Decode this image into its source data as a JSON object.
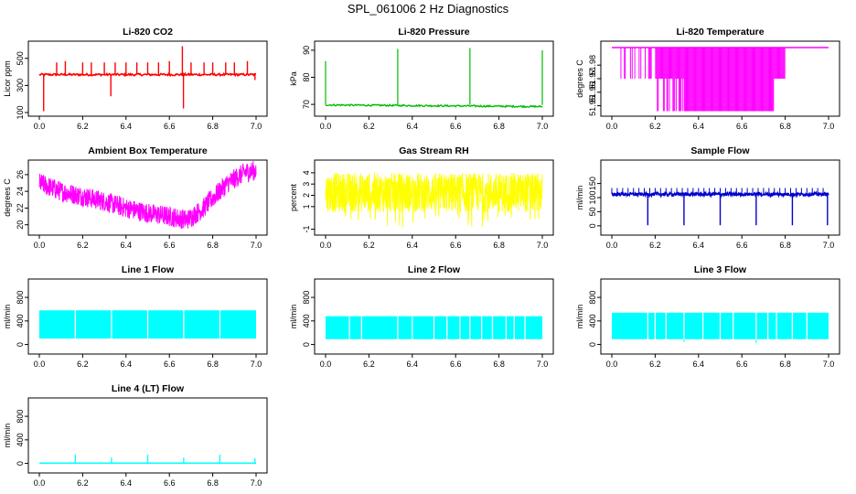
{
  "title": "SPL_061006  2 Hz Diagnostics",
  "chart_data": [
    {
      "type": "line",
      "title": "Li-820 CO2",
      "ylabel": "Licor ppm",
      "color": "#ff0000",
      "xlim": [
        0,
        7.0
      ],
      "ylim": [
        100,
        600
      ],
      "x_ticks": [
        "0.0",
        "6.2",
        "6.4",
        "6.6",
        "6.8",
        "7.0"
      ],
      "y_ticks": [
        100,
        300,
        500
      ],
      "series": [
        {
          "baseline": 380,
          "noise": 8,
          "spikes": [
            {
              "x": 0.02,
              "y": 110
            },
            {
              "x": 0.08,
              "y": 470
            },
            {
              "x": 0.12,
              "y": 480
            },
            {
              "x": 0.2,
              "y": 470
            },
            {
              "x": 0.24,
              "y": 470
            },
            {
              "x": 0.3,
              "y": 470
            },
            {
              "x": 0.33,
              "y": 220
            },
            {
              "x": 0.35,
              "y": 470
            },
            {
              "x": 0.4,
              "y": 470
            },
            {
              "x": 0.45,
              "y": 470
            },
            {
              "x": 0.5,
              "y": 470
            },
            {
              "x": 0.55,
              "y": 470
            },
            {
              "x": 0.6,
              "y": 480
            },
            {
              "x": 0.66,
              "y": 590
            },
            {
              "x": 0.665,
              "y": 130
            },
            {
              "x": 0.7,
              "y": 470
            },
            {
              "x": 0.76,
              "y": 470
            },
            {
              "x": 0.8,
              "y": 470
            },
            {
              "x": 0.86,
              "y": 470
            },
            {
              "x": 0.9,
              "y": 470
            },
            {
              "x": 0.96,
              "y": 480
            },
            {
              "x": 0.995,
              "y": 340
            }
          ]
        }
      ]
    },
    {
      "type": "line",
      "title": "Li-820 Pressure",
      "ylabel": "kPa",
      "color": "#00bb00",
      "ylim": [
        67,
        92
      ],
      "x_ticks": [
        "0.0",
        "6.2",
        "6.4",
        "6.6",
        "6.8",
        "7.0"
      ],
      "y_ticks": [
        70,
        80,
        90
      ],
      "series": [
        {
          "start": 69.8,
          "end": 69.2,
          "noise": 0.3,
          "spikes": [
            {
              "x": 0.0,
              "y": 86
            },
            {
              "x": 0.333,
              "y": 90.5
            },
            {
              "x": 0.666,
              "y": 90.8
            },
            {
              "x": 1.0,
              "y": 90
            }
          ]
        }
      ]
    },
    {
      "type": "line",
      "title": "Li-820 Temperature",
      "ylabel": "degrees C",
      "color": "#ff00ff",
      "ylim": [
        51.945,
        51.995
      ],
      "x_ticks": [
        "0.0",
        "6.2",
        "6.4",
        "6.6",
        "6.8",
        "7.0"
      ],
      "y_ticks": [
        "51.95",
        "51.96",
        "51.97",
        "51.98"
      ],
      "series": [
        {
          "level_high": 51.993,
          "level_mid": 51.97,
          "level_low": 51.946
        }
      ]
    },
    {
      "type": "line",
      "title": "Ambient Box Temperature",
      "ylabel": "degrees C",
      "color": "#ff00ff",
      "ylim": [
        19.2,
        27.3
      ],
      "x_ticks": [
        "0.0",
        "6.2",
        "6.4",
        "6.6",
        "6.8",
        "7.0"
      ],
      "y_ticks": [
        20,
        22,
        24,
        26
      ],
      "series": [
        {
          "envelope": [
            [
              0.0,
              25.0
            ],
            [
              0.1,
              24.0
            ],
            [
              0.2,
              23.4
            ],
            [
              0.3,
              22.8
            ],
            [
              0.4,
              22.0
            ],
            [
              0.5,
              21.4
            ],
            [
              0.6,
              21.0
            ],
            [
              0.68,
              20.6
            ],
            [
              0.75,
              21.8
            ],
            [
              0.8,
              23.2
            ],
            [
              0.87,
              25.0
            ],
            [
              0.95,
              26.3
            ],
            [
              1.0,
              26.5
            ]
          ],
          "noise": 1.2
        }
      ]
    },
    {
      "type": "line",
      "title": "Gas Stream RH",
      "ylabel": "percent",
      "color": "#ffff00",
      "ylim": [
        -1.2,
        4.8
      ],
      "x_ticks": [
        "0.0",
        "6.2",
        "6.4",
        "6.6",
        "6.8",
        "7.0"
      ],
      "y_ticks": [
        -1,
        1,
        2,
        3,
        4
      ],
      "series": [
        {
          "band_top": 4.0,
          "band_bottom": 0.5,
          "min": -0.9
        }
      ]
    },
    {
      "type": "line",
      "title": "Sample Flow",
      "ylabel": "ml/min",
      "color": "#0000cc",
      "ylim": [
        -20,
        220
      ],
      "x_ticks": [
        "0.0",
        "6.2",
        "6.4",
        "6.6",
        "6.8",
        "7.0"
      ],
      "y_ticks": [
        0,
        50,
        100,
        150
      ],
      "series": [
        {
          "baseline": 112,
          "noise": 6,
          "dips": [
            0.166,
            0.333,
            0.5,
            0.666,
            0.833,
            0.995
          ],
          "dip_value": 2
        }
      ]
    },
    {
      "type": "line",
      "title": "Line 1 Flow",
      "ylabel": "ml/min",
      "color": "#00ffff",
      "ylim": [
        -100,
        1050
      ],
      "x_ticks": [
        "0.0",
        "6.2",
        "6.4",
        "6.6",
        "6.8",
        "7.0"
      ],
      "y_ticks": [
        0,
        400,
        800
      ],
      "series": [
        {
          "band_top": 580,
          "band_bottom": 100,
          "gaps": [
            0.166,
            0.333,
            0.5,
            0.666,
            0.833
          ]
        }
      ]
    },
    {
      "type": "line",
      "title": "Line 2 Flow",
      "ylabel": "ml/min",
      "color": "#00ffff",
      "ylim": [
        -100,
        1050
      ],
      "x_ticks": [
        "0.0",
        "6.2",
        "6.4",
        "6.6",
        "6.8",
        "7.0"
      ],
      "y_ticks": [
        0,
        400,
        800
      ],
      "series": [
        {
          "band_top": 480,
          "band_bottom": 90,
          "gaps": [
            0.11,
            0.166,
            0.333,
            0.4,
            0.5,
            0.56,
            0.62,
            0.666,
            0.72,
            0.77,
            0.833,
            0.87,
            0.92
          ]
        }
      ]
    },
    {
      "type": "line",
      "title": "Line 3 Flow",
      "ylabel": "ml/min",
      "color": "#00ffff",
      "ylim": [
        -100,
        1050
      ],
      "x_ticks": [
        "0.0",
        "6.2",
        "6.4",
        "6.6",
        "6.8",
        "7.0"
      ],
      "y_ticks": [
        0,
        400,
        800
      ],
      "series": [
        {
          "band_top": 540,
          "band_bottom": 90,
          "gaps": [
            0.166,
            0.2,
            0.25,
            0.333,
            0.42,
            0.5,
            0.56,
            0.666,
            0.72,
            0.76,
            0.833,
            0.9
          ]
        }
      ]
    },
    {
      "type": "line",
      "title": "Line 4 (LT) Flow",
      "ylabel": "ml/min",
      "color": "#00ffff",
      "ylim": [
        -100,
        1050
      ],
      "x_ticks": [
        "0.0",
        "6.2",
        "6.4",
        "6.6",
        "6.8",
        "7.0"
      ],
      "y_ticks": [
        0,
        400,
        800
      ],
      "series": [
        {
          "baseline": 5,
          "spikes": [
            {
              "x": 0.166,
              "y": 150
            },
            {
              "x": 0.333,
              "y": 100
            },
            {
              "x": 0.5,
              "y": 150
            },
            {
              "x": 0.666,
              "y": 100
            },
            {
              "x": 0.833,
              "y": 150
            },
            {
              "x": 0.995,
              "y": 90
            }
          ]
        }
      ]
    }
  ]
}
